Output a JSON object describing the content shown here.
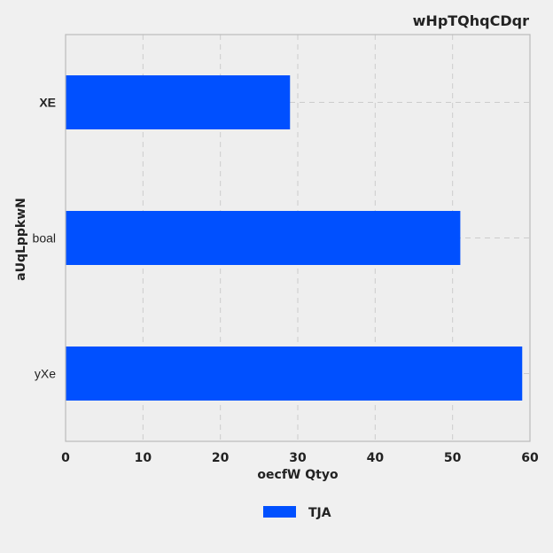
{
  "chart_data": {
    "type": "bar",
    "orientation": "horizontal",
    "title": "wHpTQhqCDqr",
    "xlabel": "oecfW Qtyo",
    "ylabel": "aUqLppkwN",
    "categories": [
      "XE",
      "boal",
      "yXe"
    ],
    "series": [
      {
        "name": "TJA",
        "values": [
          29,
          51,
          59
        ],
        "color": "#0050ff"
      }
    ],
    "xlim": [
      0,
      60
    ],
    "xticks": [
      "0",
      "10",
      "20",
      "30",
      "40",
      "50",
      "60"
    ],
    "grid": true,
    "legend_position": "bottom-center"
  },
  "colors": {
    "background": "#f0f0f0",
    "plot_background": "#eeeeee",
    "grid": "#cccccc",
    "spine": "#bbbbbb",
    "bar": "#0050ff"
  }
}
